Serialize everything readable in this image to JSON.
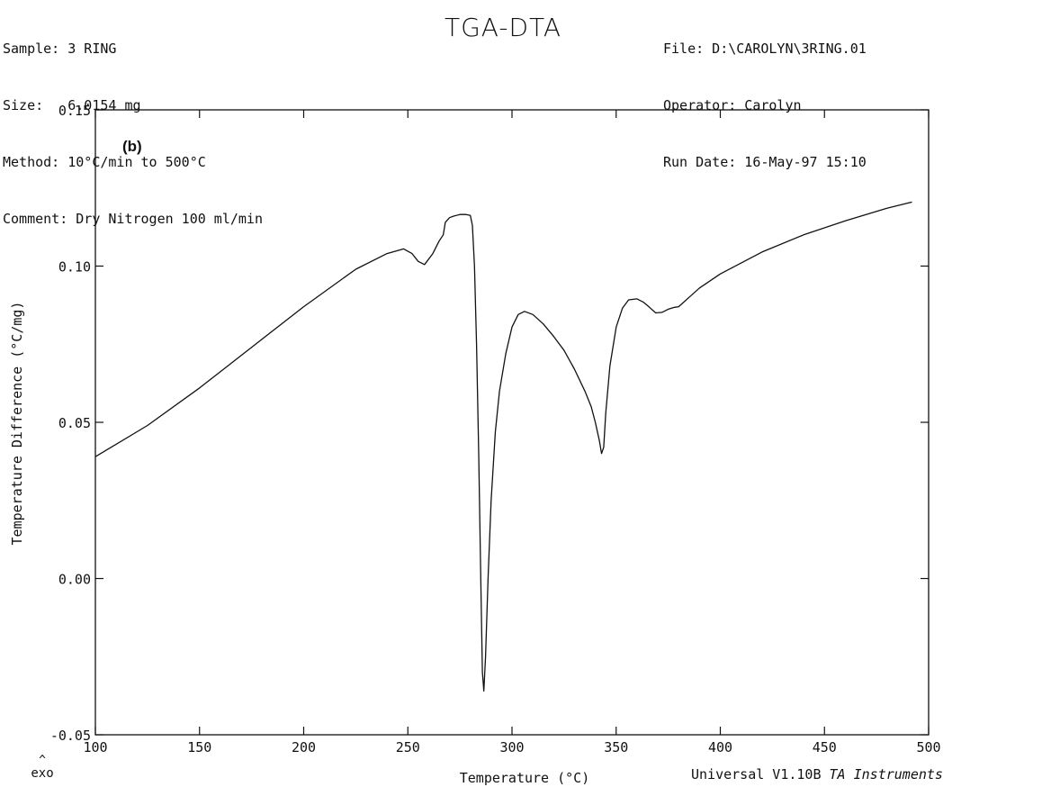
{
  "header": {
    "sample": "Sample: 3 RING",
    "size": "Size:   6.0154 mg",
    "method": "Method: 10°C/min to 500°C",
    "comment": "Comment: Dry Nitrogen 100 ml/min",
    "title": "TGA-DTA",
    "file": "File: D:\\CAROLYN\\3RING.01",
    "operator": "Operator: Carolyn",
    "run_date": "Run Date: 16-May-97 15:10"
  },
  "footer": {
    "software": "Universal V1.10B ",
    "vendor": "TA Instruments",
    "exo_marker": "^",
    "exo_label": "exo"
  },
  "chart_data": {
    "type": "line",
    "panel_label": "(b)",
    "xlabel": "Temperature (°C)",
    "ylabel": "Temperature Difference (°C/mg)",
    "xlim": [
      100,
      500
    ],
    "ylim": [
      -0.05,
      0.15
    ],
    "xticks": [
      100,
      150,
      200,
      250,
      300,
      350,
      400,
      450,
      500
    ],
    "xtick_labels": [
      "100",
      "150",
      "200",
      "250",
      "300",
      "350",
      "400",
      "450",
      "500"
    ],
    "yticks": [
      -0.05,
      0.0,
      0.05,
      0.1,
      0.15
    ],
    "ytick_labels": [
      "-0.05",
      "0.00",
      "0.05",
      "0.10",
      "0.15"
    ],
    "grid": false,
    "legend": "none",
    "line_color": "#111111",
    "series": [
      {
        "x": [
          100,
          125,
          150,
          175,
          200,
          225,
          240,
          248,
          252,
          255,
          258,
          262,
          265,
          267,
          268,
          270,
          272,
          275,
          278,
          280,
          281,
          282,
          283,
          284,
          285,
          285.8,
          286.5,
          287.3,
          288.5,
          290,
          292,
          294,
          297,
          300,
          303,
          306,
          310,
          315,
          320,
          325,
          330,
          335,
          338,
          340,
          342,
          343,
          344,
          345,
          347,
          350,
          353,
          356,
          360,
          363,
          366,
          369,
          372,
          375,
          378,
          380,
          385,
          390,
          400,
          420,
          440,
          460,
          480,
          492
        ],
        "y": [
          0.039,
          0.049,
          0.061,
          0.074,
          0.087,
          0.099,
          0.104,
          0.1055,
          0.104,
          0.1015,
          0.1005,
          0.104,
          0.108,
          0.11,
          0.114,
          0.1155,
          0.116,
          0.1165,
          0.1165,
          0.1162,
          0.113,
          0.1,
          0.075,
          0.04,
          0.0,
          -0.03,
          -0.036,
          -0.025,
          0.0,
          0.025,
          0.047,
          0.06,
          0.072,
          0.0805,
          0.0845,
          0.0855,
          0.0845,
          0.0815,
          0.0775,
          0.073,
          0.067,
          0.06,
          0.055,
          0.05,
          0.044,
          0.04,
          0.042,
          0.053,
          0.068,
          0.0805,
          0.0865,
          0.0892,
          0.0895,
          0.0885,
          0.0868,
          0.085,
          0.0852,
          0.0862,
          0.0868,
          0.087,
          0.09,
          0.093,
          0.0975,
          0.1045,
          0.11,
          0.1145,
          0.1185,
          0.1205
        ]
      }
    ]
  }
}
